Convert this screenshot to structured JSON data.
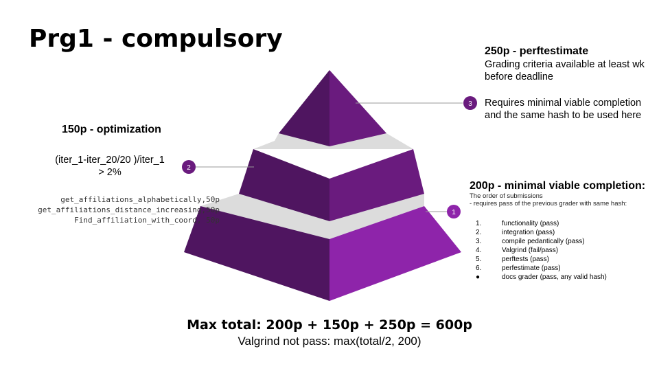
{
  "title": "Prg1 - compulsory",
  "colors": {
    "dark_purple": "#4f1560",
    "mid_purple": "#6a1b7e",
    "light_purple": "#8e24aa",
    "separator": "#dcdcdc",
    "connector": "#999999"
  },
  "tier3": {
    "badge": "3",
    "header": "250p - perftestimate",
    "line1": "Grading criteria available at least wk",
    "line2": "before deadline",
    "req1": "Requires minimal viable completion",
    "req2": "and the same hash to be used here"
  },
  "tier2": {
    "badge": "2",
    "header": "150p - optimization",
    "formula1": "(iter_1-iter_20/20 )/iter_1",
    "formula2": "> 2%",
    "functions": [
      "get_affiliations_alphabetically,50p",
      "get_affiliations_distance_increasing,50p",
      "Find_affiliation_with_coord, 50p"
    ]
  },
  "tier1": {
    "badge": "1",
    "header": "200p - minimal viable completion:",
    "sub1": "The order of submissions",
    "sub2": "- requires pass of the previous grader with same hash:",
    "list": [
      {
        "num": "1.",
        "text": "functionality (pass)"
      },
      {
        "num": "2.",
        "text": "integration (pass)"
      },
      {
        "num": "3.",
        "text": "compile pedantically (pass)"
      },
      {
        "num": "4.",
        "text": "Valgrind (fail/pass)"
      },
      {
        "num": "5.",
        "text": "perftests (pass)"
      },
      {
        "num": "6.",
        "text": "perfestimate (pass)"
      },
      {
        "num": "●",
        "text": "docs grader (pass, any valid hash)"
      }
    ]
  },
  "footer": {
    "max_total": "Max total:  200p + 150p + 250p = 600p",
    "valgrind": "Valgrind not pass: max(total/2, 200)"
  }
}
